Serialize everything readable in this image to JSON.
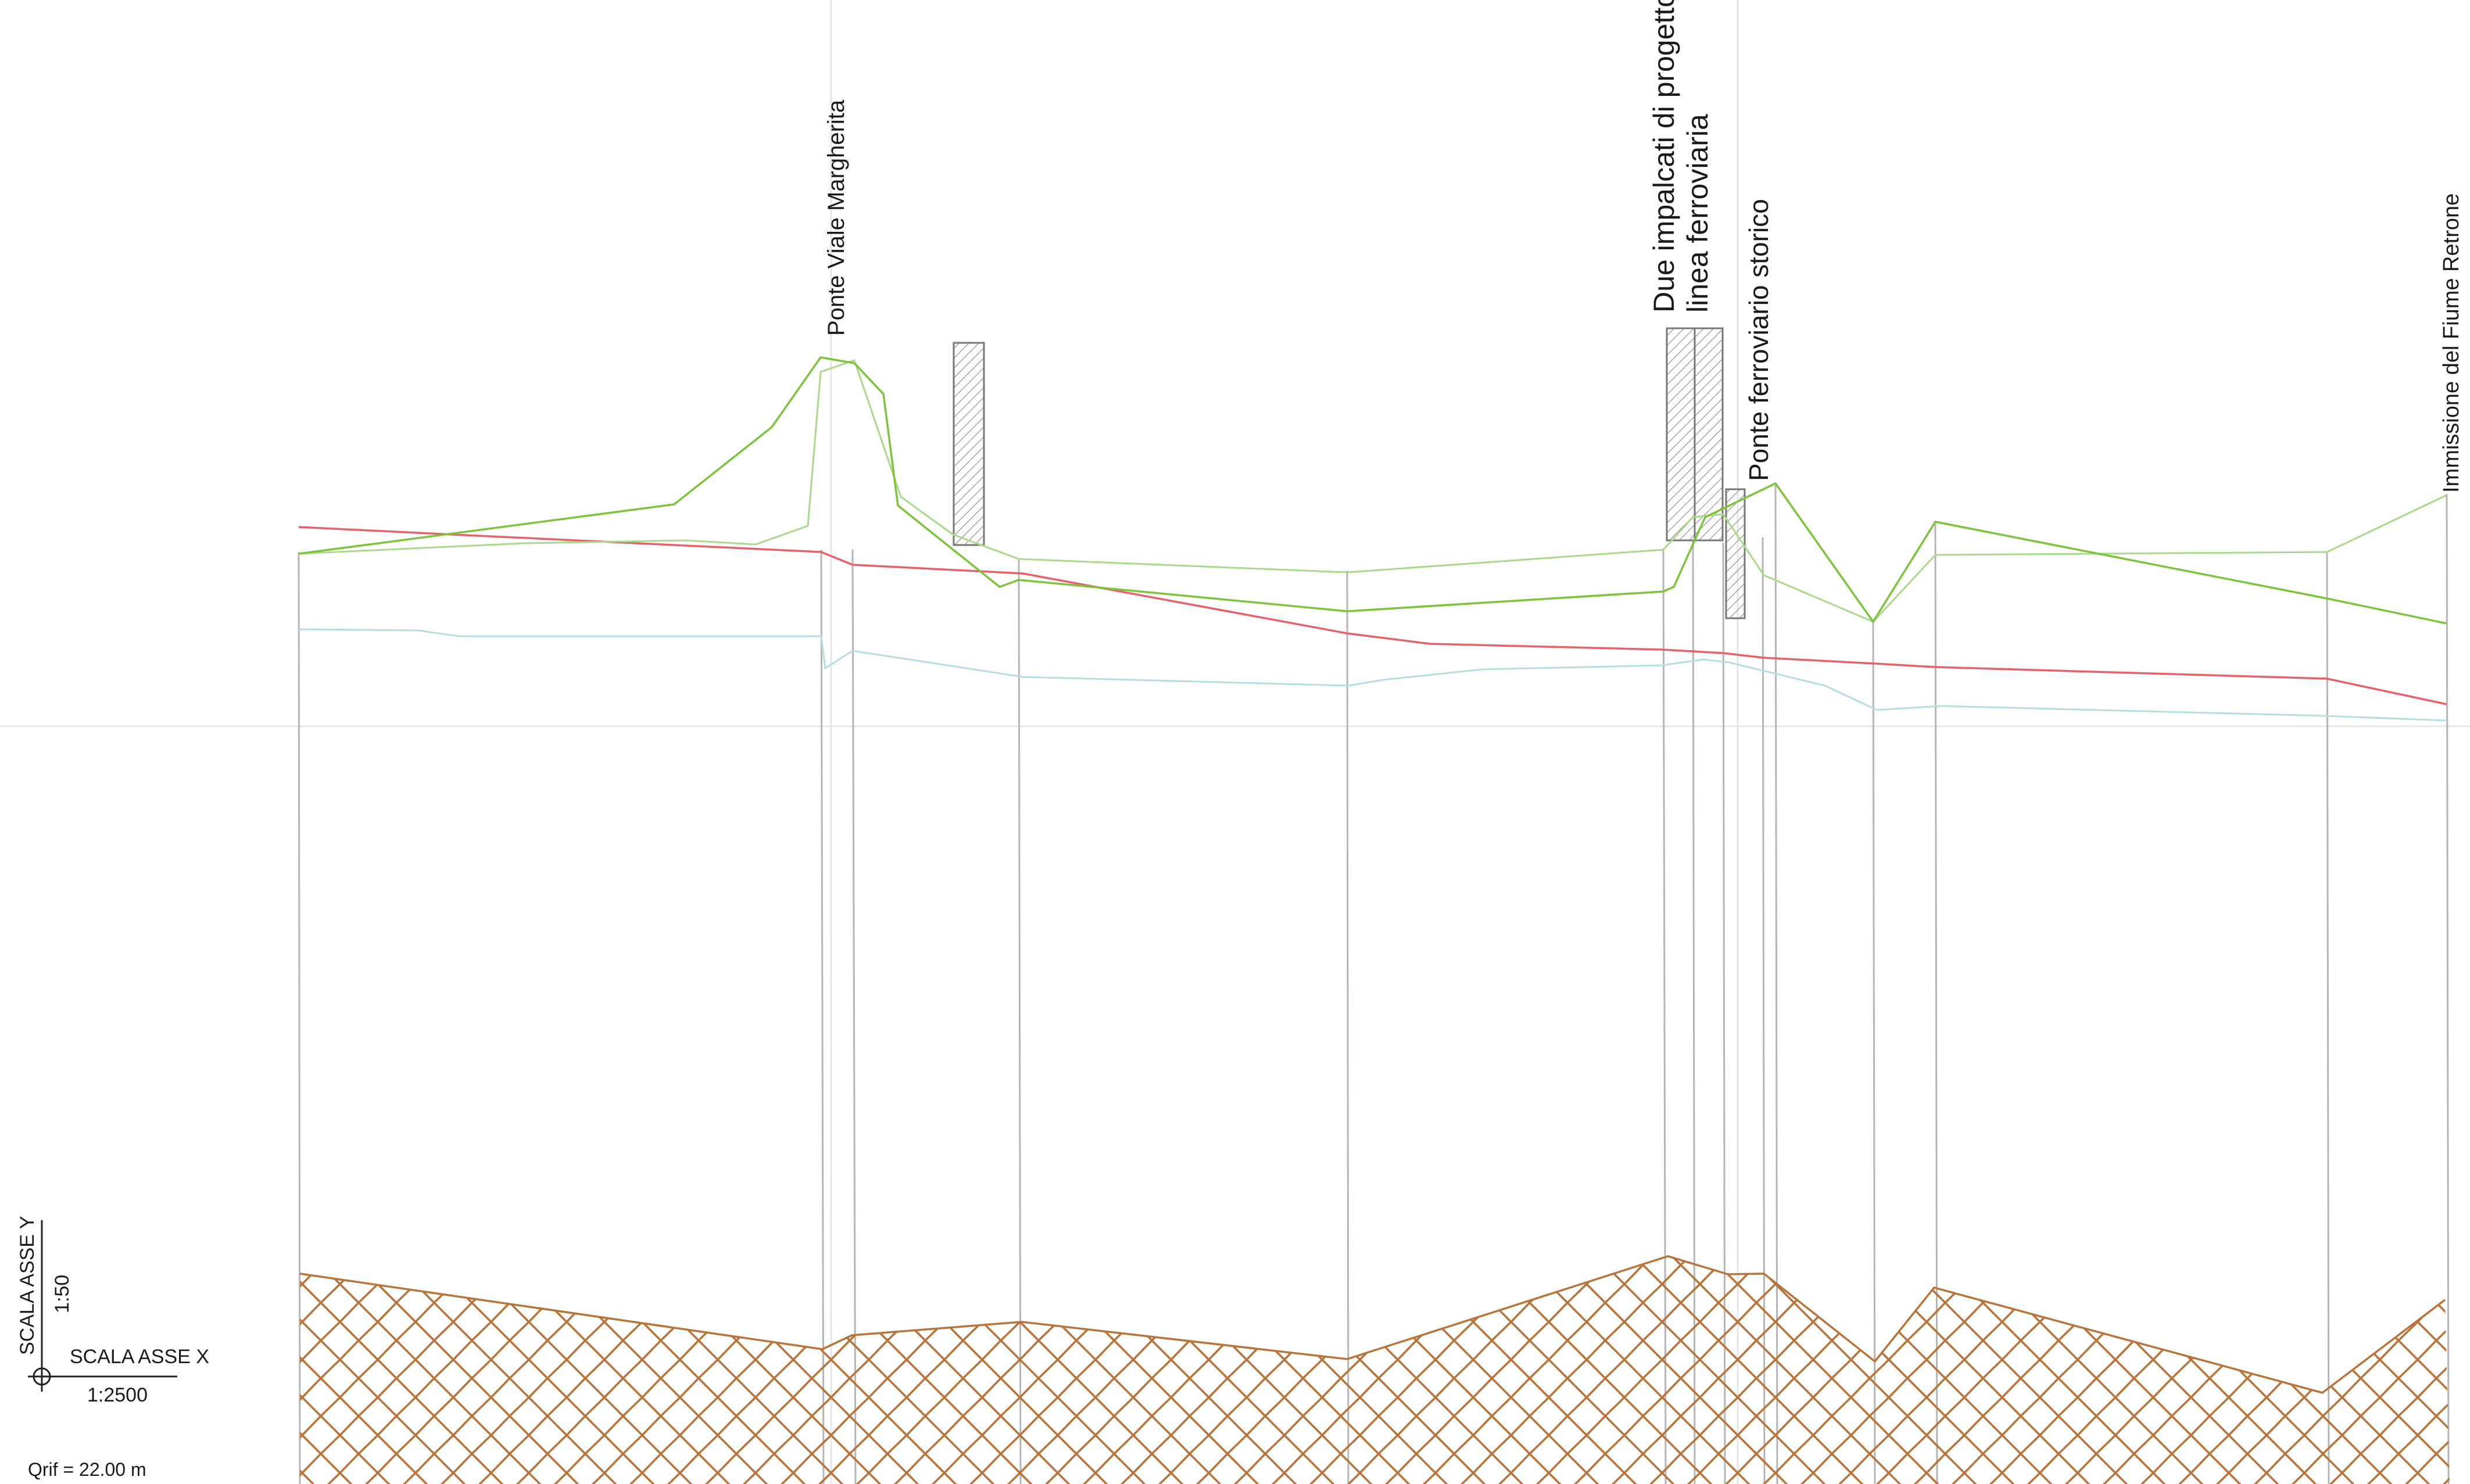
{
  "structures": [
    {
      "label": "Ponte Viale Margherita"
    },
    {
      "label": "Due impalcati di progetto"
    },
    {
      "label": "linea ferroviaria"
    },
    {
      "label": "Ponte ferroviario storico"
    },
    {
      "label": "Immissione del Fiume Retrone"
    }
  ],
  "scale": {
    "y_label": "SCALA ASSE Y",
    "y_value": "1:50",
    "x_label": "SCALA ASSE X",
    "x_value": "1:2500",
    "qrif": "Qrif = 22.00 m"
  },
  "colors": {
    "bank_line": "#7cc43a",
    "bank_line_light": "#a9d98a",
    "water_level": "#e8606a",
    "riverbed_light": "#b7dde0",
    "section_line": "#b5b5b5",
    "soil": "#b8743a",
    "bridge_hatch": "#8a8a8a",
    "text": "#1a1a1a"
  }
}
